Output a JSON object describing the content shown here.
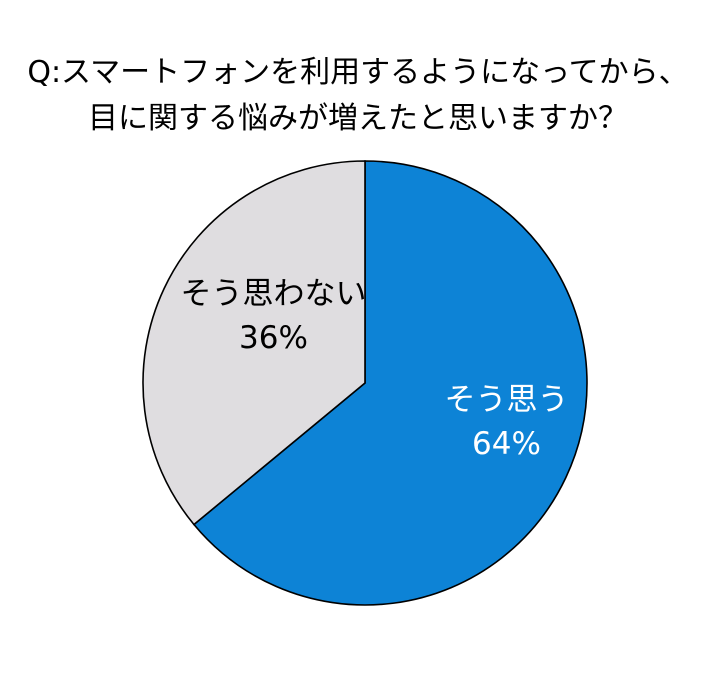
{
  "chart_data": {
    "type": "pie",
    "title_lines": [
      "Q:スマートフォンを利用するようになってから、",
      "目に関する悩みが増えたと思いますか？"
    ],
    "slices": [
      {
        "label": "そう思う",
        "value": 64,
        "value_label": "64%",
        "color": "#0d83d6",
        "label_color": "#ffffff"
      },
      {
        "label": "そう思わない",
        "value": 36,
        "value_label": "36%",
        "color": "#dfdde0",
        "label_color": "#000000"
      }
    ],
    "start": "12 o'clock",
    "direction": "clockwise",
    "outline_color": "#000000",
    "legend": "none"
  }
}
